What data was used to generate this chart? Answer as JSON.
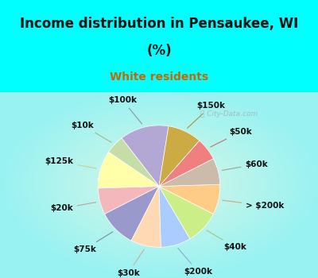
{
  "title_line1": "Income distribution in Pensaukee, WI",
  "title_line2": "(%)",
  "subtitle": "White residents",
  "title_color": "#111111",
  "subtitle_color": "#cc6600",
  "bg_cyan": "#00ffff",
  "labels": [
    "$100k",
    "$10k",
    "$125k",
    "$20k",
    "$75k",
    "$30k",
    "$200k",
    "$40k",
    "> $200k",
    "$60k",
    "$50k",
    "$150k"
  ],
  "values": [
    13,
    5,
    10,
    7,
    10,
    8,
    8,
    9,
    8,
    7,
    6,
    9
  ],
  "colors": [
    "#b3a8d4",
    "#c5dea8",
    "#ffffaa",
    "#f4b8bc",
    "#9999cc",
    "#ffd9b3",
    "#aaccff",
    "#ccee88",
    "#ffcc88",
    "#ccbbaa",
    "#f08080",
    "#ccaa44"
  ],
  "startangle": 81,
  "title_fontsize": 12,
  "subtitle_fontsize": 10,
  "label_fontsize": 7.5
}
